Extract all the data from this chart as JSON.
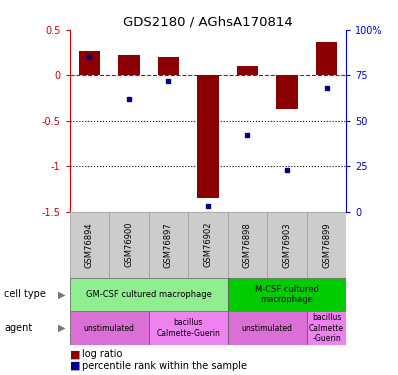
{
  "title": "GDS2180 / AGhsA170814",
  "samples": [
    "GSM76894",
    "GSM76900",
    "GSM76897",
    "GSM76902",
    "GSM76898",
    "GSM76903",
    "GSM76899"
  ],
  "log_ratio": [
    0.27,
    0.23,
    0.2,
    -1.35,
    0.1,
    -0.37,
    0.37
  ],
  "percentile_rank": [
    85,
    62,
    72,
    3,
    42,
    23,
    68
  ],
  "ylim_left": [
    -1.5,
    0.5
  ],
  "ylim_right": [
    0,
    100
  ],
  "yticks_left": [
    -1.5,
    -1.0,
    -0.5,
    0.0,
    0.5
  ],
  "ytick_labels_left": [
    "-1.5",
    "-1",
    "-0.5",
    "0",
    "0.5"
  ],
  "yticks_right": [
    0,
    25,
    50,
    75,
    100
  ],
  "ytick_labels_right": [
    "0",
    "25",
    "50",
    "75",
    "100%"
  ],
  "bar_color": "#8B0000",
  "dot_color": "#00008B",
  "dashed_line_color": "#CC0000",
  "dotted_line_color": "#000000",
  "cell_type_groups": [
    {
      "label": "GM-CSF cultured macrophage",
      "start": 0,
      "end": 3,
      "color": "#90EE90"
    },
    {
      "label": "M-CSF cultured\nmacrophage",
      "start": 4,
      "end": 6,
      "color": "#00CC00"
    }
  ],
  "agent_groups": [
    {
      "label": "unstimulated",
      "start": 0,
      "end": 1,
      "color": "#DA70D6"
    },
    {
      "label": "bacillus\nCalmette-Guerin",
      "start": 2,
      "end": 3,
      "color": "#EE82EE"
    },
    {
      "label": "unstimulated",
      "start": 4,
      "end": 5,
      "color": "#DA70D6"
    },
    {
      "label": "bacillus\nCalmette\n-Guerin",
      "start": 6,
      "end": 6,
      "color": "#EE82EE"
    }
  ],
  "left_axis_color": "#CC0000",
  "right_axis_color": "#0000CC",
  "sample_bg_color": "#CCCCCC",
  "sample_edge_color": "#999999"
}
